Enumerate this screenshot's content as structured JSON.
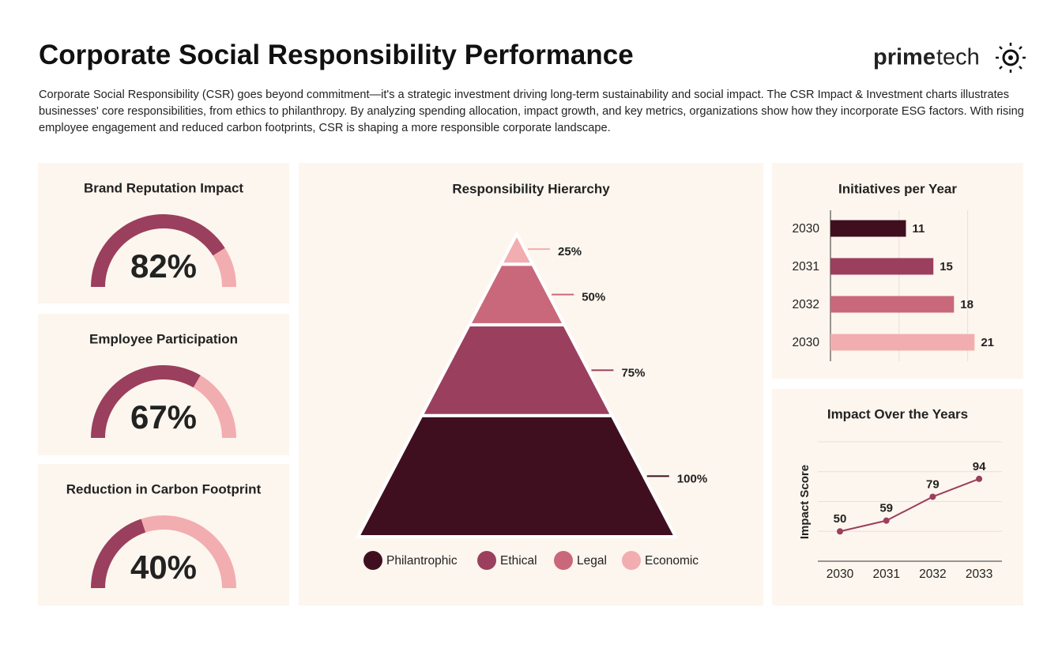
{
  "header": {
    "title": "Corporate Social Responsibility Performance",
    "description": "Corporate Social Responsibility (CSR) goes beyond commitment—it's a strategic investment driving long-term sustainability and social impact. The CSR Impact & Investment charts illustrates businesses' core responsibilities, from ethics to philanthropy. By analyzing spending allocation, impact growth, and key metrics, organizations show how they incorporate ESG factors. With rising employee engagement and reduced carbon footprints, CSR is shaping a more responsible corporate landscape.",
    "logo": [
      "prime",
      "tech"
    ]
  },
  "chart_data": [
    {
      "type": "gauge",
      "title": "Brand Reputation Impact",
      "values": [
        82
      ],
      "value_labels": [
        "82%"
      ],
      "ylim": [
        0,
        100
      ],
      "colors": [
        "#9b3f5e",
        "#f2adb0"
      ]
    },
    {
      "type": "gauge",
      "title": "Employee Participation",
      "values": [
        67
      ],
      "value_labels": [
        "67%"
      ],
      "ylim": [
        0,
        100
      ],
      "colors": [
        "#9b3f5e",
        "#f2adb0"
      ]
    },
    {
      "type": "gauge",
      "title": "Reduction in Carbon Footprint",
      "values": [
        40
      ],
      "value_labels": [
        "40%"
      ],
      "ylim": [
        0,
        100
      ],
      "colors": [
        "#9b3f5e",
        "#f2adb0"
      ]
    },
    {
      "type": "pyramid",
      "title": "Responsibility Hierarchy",
      "categories": [
        "Philantrophic",
        "Ethical",
        "Legal",
        "Economic"
      ],
      "values": [
        100,
        75,
        50,
        25
      ],
      "value_labels": [
        "100%",
        "75%",
        "50%",
        "25%"
      ],
      "colors": [
        "#3f0f20",
        "#9b3f5e",
        "#c9687a",
        "#f2adb0"
      ]
    },
    {
      "type": "hbar",
      "title": "Initiatives per Year",
      "categories": [
        "2030",
        "2031",
        "2032",
        "2030"
      ],
      "values": [
        11,
        15,
        18,
        21
      ],
      "colors": [
        "#3f0f20",
        "#9b3f5e",
        "#c9687a",
        "#f2adb0"
      ],
      "xlim": [
        0,
        22
      ],
      "xticks": [
        0,
        10,
        20
      ],
      "grid": true
    },
    {
      "type": "line",
      "title": "Impact Over the Years",
      "y_label": "Impact Score",
      "categories": [
        "2030",
        "2031",
        "2032",
        "2033"
      ],
      "values": [
        50,
        59,
        79,
        94
      ],
      "color": "#9b3f5e",
      "ylim": [
        25,
        125
      ],
      "yticks": [
        25,
        50,
        75,
        100,
        125
      ],
      "grid": true
    }
  ]
}
